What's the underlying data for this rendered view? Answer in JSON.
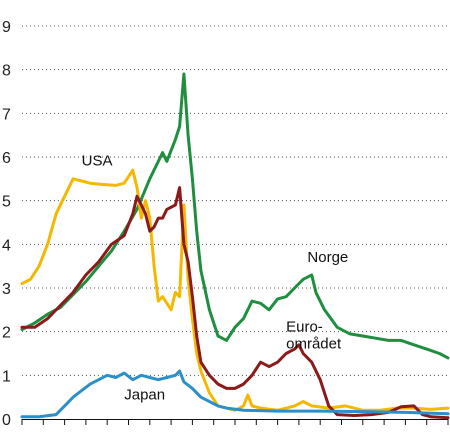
{
  "chart_data": {
    "type": "line",
    "title": "",
    "xlabel": "",
    "ylabel": "",
    "ylim": [
      0,
      9
    ],
    "xlim": [
      0,
      100
    ],
    "y_ticks": [
      0,
      1,
      2,
      3,
      4,
      5,
      6,
      7,
      8,
      9
    ],
    "y_tick_labels": [
      "0",
      "1",
      "2",
      "3",
      "4",
      "5",
      "6",
      "7",
      "8",
      "9"
    ],
    "grid": "horizontal-dotted",
    "series": [
      {
        "name": "Norge",
        "color": "#1f8f3f",
        "points": [
          [
            0,
            2.05
          ],
          [
            3,
            2.2
          ],
          [
            6,
            2.4
          ],
          [
            9,
            2.55
          ],
          [
            12,
            2.85
          ],
          [
            15,
            3.15
          ],
          [
            18,
            3.5
          ],
          [
            21,
            3.85
          ],
          [
            24,
            4.3
          ],
          [
            27,
            4.8
          ],
          [
            30,
            5.5
          ],
          [
            33,
            6.1
          ],
          [
            34,
            5.9
          ],
          [
            36,
            6.4
          ],
          [
            37,
            6.7
          ],
          [
            38,
            7.9
          ],
          [
            39,
            6.5
          ],
          [
            40,
            5.5
          ],
          [
            41,
            4.3
          ],
          [
            42,
            3.4
          ],
          [
            44,
            2.5
          ],
          [
            46,
            1.9
          ],
          [
            48,
            1.8
          ],
          [
            50,
            2.1
          ],
          [
            52,
            2.3
          ],
          [
            54,
            2.7
          ],
          [
            56,
            2.65
          ],
          [
            58,
            2.5
          ],
          [
            60,
            2.75
          ],
          [
            62,
            2.8
          ],
          [
            64,
            3.0
          ],
          [
            66,
            3.2
          ],
          [
            68,
            3.3
          ],
          [
            69,
            2.9
          ],
          [
            71,
            2.5
          ],
          [
            74,
            2.1
          ],
          [
            77,
            1.95
          ],
          [
            80,
            1.9
          ],
          [
            83,
            1.85
          ],
          [
            86,
            1.8
          ],
          [
            89,
            1.8
          ],
          [
            92,
            1.7
          ],
          [
            95,
            1.6
          ],
          [
            98,
            1.5
          ],
          [
            100,
            1.4
          ]
        ]
      },
      {
        "name": "USA",
        "color": "#f5b800",
        "points": [
          [
            0,
            3.1
          ],
          [
            2,
            3.2
          ],
          [
            4,
            3.5
          ],
          [
            6,
            4.0
          ],
          [
            8,
            4.7
          ],
          [
            10,
            5.1
          ],
          [
            12,
            5.5
          ],
          [
            14,
            5.45
          ],
          [
            16,
            5.4
          ],
          [
            18,
            5.38
          ],
          [
            22,
            5.35
          ],
          [
            24,
            5.4
          ],
          [
            26,
            5.7
          ],
          [
            27,
            5.3
          ],
          [
            28,
            4.6
          ],
          [
            29,
            5.0
          ],
          [
            30,
            4.6
          ],
          [
            31,
            3.5
          ],
          [
            32,
            2.7
          ],
          [
            33,
            2.8
          ],
          [
            35,
            2.5
          ],
          [
            36,
            2.9
          ],
          [
            37,
            2.8
          ],
          [
            38,
            4.9
          ],
          [
            39,
            3.2
          ],
          [
            40,
            2.3
          ],
          [
            41,
            1.5
          ],
          [
            42,
            1.1
          ],
          [
            44,
            0.6
          ],
          [
            46,
            0.3
          ],
          [
            48,
            0.25
          ],
          [
            50,
            0.2
          ],
          [
            52,
            0.3
          ],
          [
            53,
            0.55
          ],
          [
            54,
            0.3
          ],
          [
            56,
            0.25
          ],
          [
            60,
            0.2
          ],
          [
            64,
            0.3
          ],
          [
            66,
            0.4
          ],
          [
            68,
            0.3
          ],
          [
            72,
            0.25
          ],
          [
            76,
            0.3
          ],
          [
            80,
            0.2
          ],
          [
            84,
            0.2
          ],
          [
            88,
            0.25
          ],
          [
            92,
            0.25
          ],
          [
            96,
            0.22
          ],
          [
            100,
            0.25
          ]
        ]
      },
      {
        "name": "Euro-\nområdet",
        "color": "#8b1a1a",
        "points": [
          [
            0,
            2.1
          ],
          [
            3,
            2.1
          ],
          [
            6,
            2.3
          ],
          [
            9,
            2.6
          ],
          [
            12,
            2.9
          ],
          [
            15,
            3.3
          ],
          [
            18,
            3.6
          ],
          [
            21,
            4.0
          ],
          [
            24,
            4.2
          ],
          [
            26,
            4.7
          ],
          [
            27,
            5.1
          ],
          [
            28,
            4.9
          ],
          [
            29,
            4.7
          ],
          [
            30,
            4.3
          ],
          [
            31,
            4.4
          ],
          [
            32,
            4.6
          ],
          [
            33,
            4.6
          ],
          [
            34,
            4.8
          ],
          [
            36,
            4.9
          ],
          [
            37,
            5.3
          ],
          [
            38,
            4.0
          ],
          [
            39,
            3.6
          ],
          [
            40,
            2.8
          ],
          [
            41,
            1.9
          ],
          [
            42,
            1.3
          ],
          [
            44,
            1.0
          ],
          [
            46,
            0.8
          ],
          [
            48,
            0.7
          ],
          [
            50,
            0.7
          ],
          [
            52,
            0.8
          ],
          [
            54,
            1.0
          ],
          [
            56,
            1.3
          ],
          [
            58,
            1.2
          ],
          [
            60,
            1.3
          ],
          [
            62,
            1.5
          ],
          [
            64,
            1.6
          ],
          [
            65,
            1.7
          ],
          [
            66,
            1.5
          ],
          [
            68,
            1.3
          ],
          [
            70,
            0.9
          ],
          [
            72,
            0.3
          ],
          [
            74,
            0.1
          ],
          [
            78,
            0.08
          ],
          [
            82,
            0.1
          ],
          [
            86,
            0.15
          ],
          [
            89,
            0.28
          ],
          [
            92,
            0.3
          ],
          [
            94,
            0.1
          ],
          [
            96,
            0.05
          ],
          [
            100,
            0.03
          ]
        ]
      },
      {
        "name": "Japan",
        "color": "#2b8fc9",
        "points": [
          [
            0,
            0.05
          ],
          [
            4,
            0.05
          ],
          [
            8,
            0.1
          ],
          [
            10,
            0.3
          ],
          [
            12,
            0.5
          ],
          [
            14,
            0.65
          ],
          [
            16,
            0.8
          ],
          [
            18,
            0.9
          ],
          [
            20,
            1.0
          ],
          [
            22,
            0.95
          ],
          [
            24,
            1.05
          ],
          [
            26,
            0.9
          ],
          [
            28,
            1.0
          ],
          [
            30,
            0.95
          ],
          [
            32,
            0.9
          ],
          [
            34,
            0.95
          ],
          [
            36,
            1.0
          ],
          [
            37,
            1.1
          ],
          [
            38,
            0.85
          ],
          [
            40,
            0.7
          ],
          [
            42,
            0.5
          ],
          [
            44,
            0.4
          ],
          [
            46,
            0.3
          ],
          [
            48,
            0.25
          ],
          [
            52,
            0.2
          ],
          [
            60,
            0.18
          ],
          [
            70,
            0.18
          ],
          [
            80,
            0.17
          ],
          [
            90,
            0.15
          ],
          [
            100,
            0.12
          ]
        ]
      }
    ],
    "annotations": [
      {
        "series": "USA",
        "text": "USA",
        "at": [
          14,
          5.8
        ]
      },
      {
        "series": "Norge",
        "text": "Norge",
        "at": [
          67,
          3.6
        ]
      },
      {
        "series": "Euro-\nområdet",
        "text": "Euro-",
        "text2": "området",
        "at": [
          62,
          2.0
        ]
      },
      {
        "series": "Japan",
        "text": "Japan",
        "at": [
          24,
          0.45
        ]
      }
    ]
  }
}
